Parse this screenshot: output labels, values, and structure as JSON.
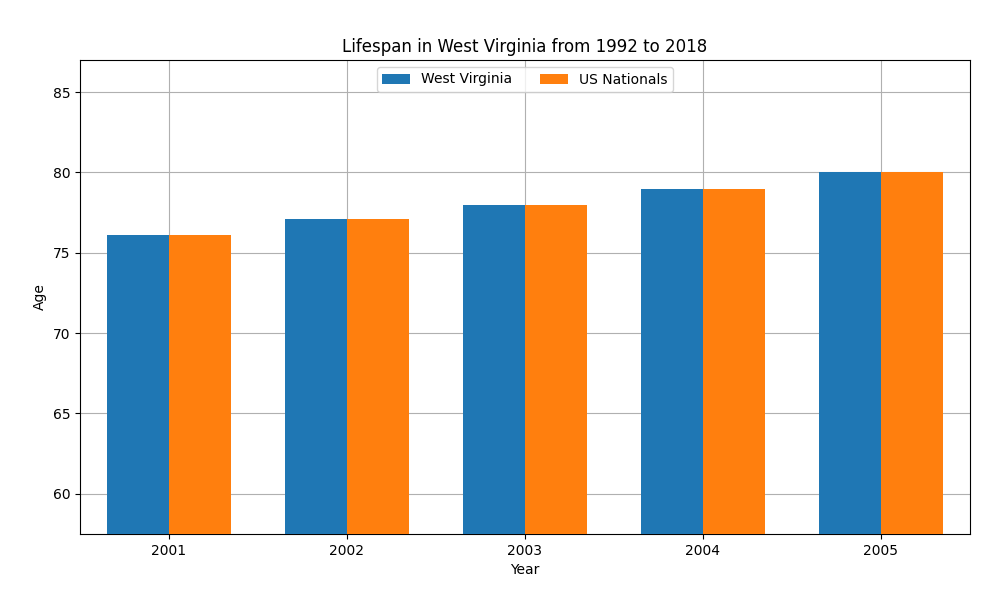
{
  "chart_data": {
    "type": "bar",
    "title": "Lifespan in West Virginia from 1992 to 2018",
    "x_label": "Year",
    "y_label": "Age",
    "categories": [
      "2001",
      "2002",
      "2003",
      "2004",
      "2005"
    ],
    "series": [
      {
        "name": "West Virginia",
        "values": [
          76.1,
          77.1,
          78.0,
          79.0,
          80.0
        ]
      },
      {
        "name": "US Nationals",
        "values": [
          76.1,
          77.1,
          78.0,
          79.0,
          80.0
        ]
      }
    ],
    "ylim": [
      57.5,
      87
    ],
    "yticks": [
      60,
      65,
      70,
      75,
      80,
      85
    ],
    "grid": true,
    "legend": "upper center"
  }
}
